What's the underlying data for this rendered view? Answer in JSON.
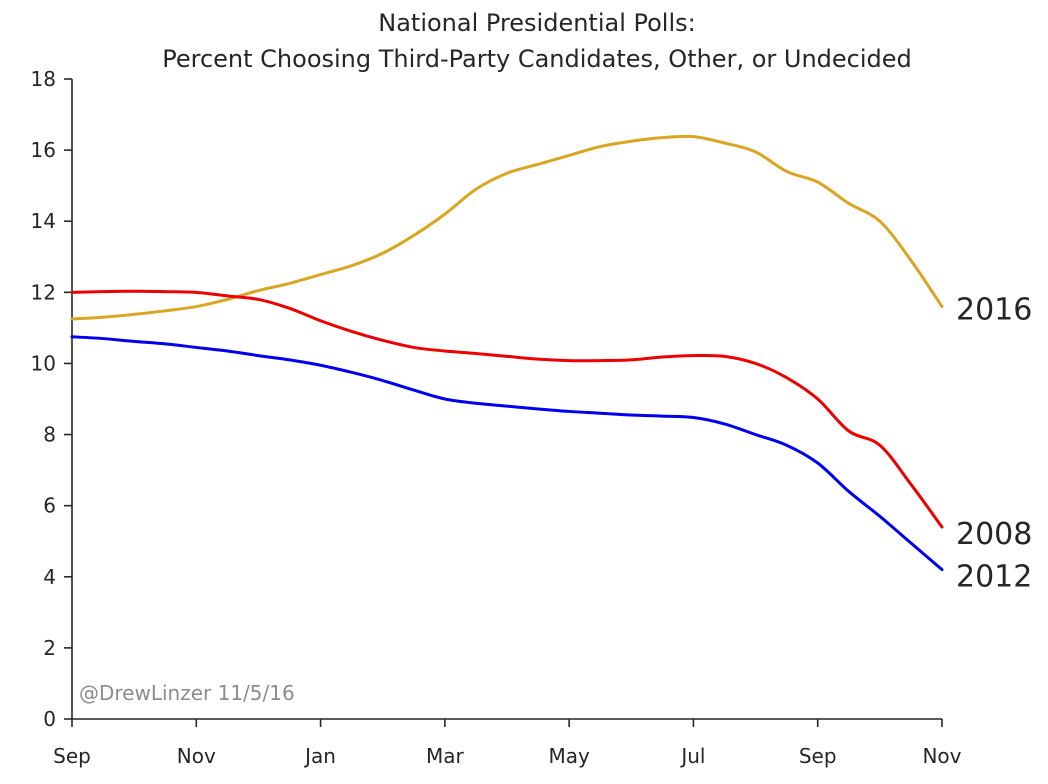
{
  "chart_data": {
    "type": "line",
    "title": "National Presidential Polls:",
    "subtitle": "Percent Choosing Third-Party Candidates, Other, or Undecided",
    "xlabel": "",
    "ylabel": "",
    "ylim": [
      0,
      18
    ],
    "xlim": [
      0,
      14
    ],
    "grid": false,
    "x_tick_labels": [
      {
        "x": 0,
        "label": "Sep"
      },
      {
        "x": 2,
        "label": "Nov"
      },
      {
        "x": 4,
        "label": "Jan"
      },
      {
        "x": 6,
        "label": "Mar"
      },
      {
        "x": 8,
        "label": "May"
      },
      {
        "x": 10,
        "label": "Jul"
      },
      {
        "x": 12,
        "label": "Sep"
      },
      {
        "x": 14,
        "label": "Nov"
      }
    ],
    "y_ticks": [
      0,
      2,
      4,
      6,
      8,
      10,
      12,
      14,
      16,
      18
    ],
    "x_unit": "months since Sep 1 of the year before the election",
    "series": [
      {
        "name": "2016",
        "color": "#DAA520",
        "x": [
          0,
          0.5,
          1,
          1.5,
          2,
          2.5,
          3,
          3.5,
          4,
          4.5,
          5,
          5.5,
          6,
          6.5,
          7,
          7.5,
          8,
          8.5,
          9,
          9.5,
          10,
          10.5,
          11,
          11.5,
          12,
          12.5,
          13,
          13.5,
          14
        ],
        "y": [
          11.25,
          11.3,
          11.38,
          11.48,
          11.6,
          11.8,
          12.05,
          12.25,
          12.5,
          12.75,
          13.1,
          13.6,
          14.2,
          14.9,
          15.35,
          15.6,
          15.85,
          16.1,
          16.25,
          16.35,
          16.38,
          16.2,
          15.95,
          15.4,
          15.1,
          14.5,
          14.0,
          12.9,
          11.6
        ]
      },
      {
        "name": "2008",
        "color": "#EE0000",
        "x": [
          0,
          0.5,
          1,
          1.5,
          2,
          2.5,
          3,
          3.5,
          4,
          4.5,
          5,
          5.5,
          6,
          6.5,
          7,
          7.5,
          8,
          8.5,
          9,
          9.5,
          10,
          10.5,
          11,
          11.5,
          12,
          12.5,
          13,
          13.5,
          14
        ],
        "y": [
          12.0,
          12.02,
          12.03,
          12.02,
          12.0,
          11.9,
          11.8,
          11.55,
          11.2,
          10.9,
          10.65,
          10.45,
          10.35,
          10.28,
          10.2,
          10.12,
          10.08,
          10.08,
          10.1,
          10.18,
          10.22,
          10.2,
          10.0,
          9.6,
          9.0,
          8.1,
          7.7,
          6.6,
          5.4
        ]
      },
      {
        "name": "2012",
        "color": "#0000EE",
        "x": [
          0,
          0.5,
          1,
          1.5,
          2,
          2.5,
          3,
          3.5,
          4,
          4.5,
          5,
          5.5,
          6,
          6.5,
          7,
          7.5,
          8,
          8.5,
          9,
          9.5,
          10,
          10.5,
          11,
          11.5,
          12,
          12.5,
          13,
          13.5,
          14
        ],
        "y": [
          10.75,
          10.7,
          10.62,
          10.55,
          10.45,
          10.35,
          10.22,
          10.1,
          9.95,
          9.75,
          9.52,
          9.25,
          9.0,
          8.88,
          8.8,
          8.72,
          8.65,
          8.6,
          8.55,
          8.52,
          8.48,
          8.3,
          8.0,
          7.7,
          7.2,
          6.4,
          5.7,
          4.95,
          4.2
        ]
      }
    ],
    "annotations": [
      {
        "text": "@DrewLinzer 11/5/16",
        "placement": "bottom-left"
      }
    ]
  }
}
